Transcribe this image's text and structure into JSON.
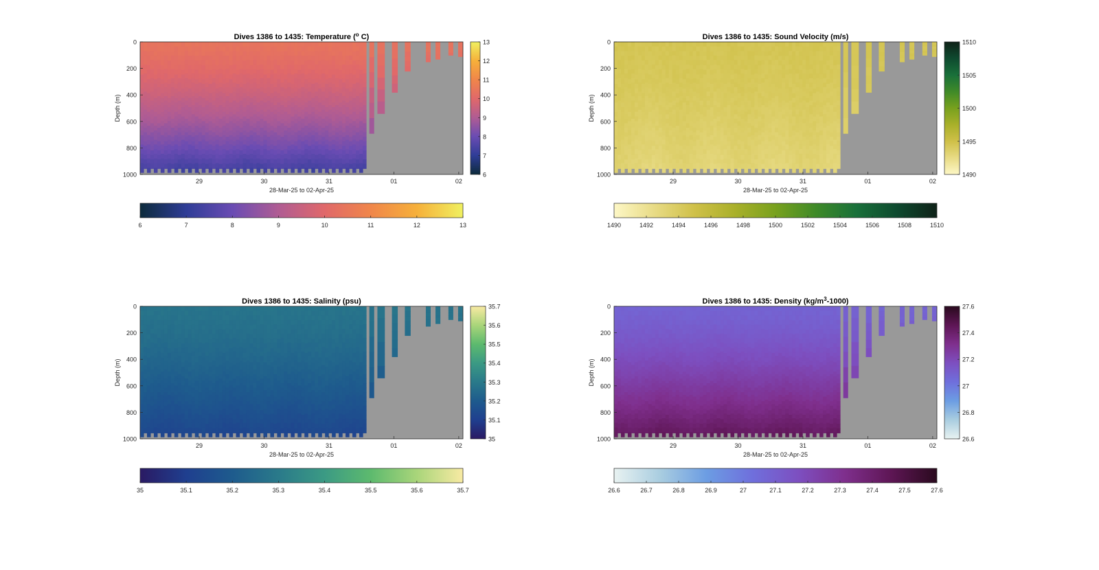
{
  "figure": {
    "background": "#ffffff",
    "land_color": "#999999",
    "x_axis_label": "28-Mar-25 to 02-Apr-25",
    "y_axis_label": "Depth (m)",
    "x_ticks": [
      "29",
      "30",
      "31",
      "01",
      "02"
    ],
    "y_ticks": [
      "0",
      "200",
      "400",
      "600",
      "800",
      "1000"
    ]
  },
  "chart_data": [
    {
      "type": "heatmap",
      "variable": "temperature",
      "title_pre": "Dives 1386 to 1435: Temperature (",
      "title_sup": "o",
      "title_post": " C)",
      "colormap": [
        "#0d2b3c",
        "#2f3d97",
        "#6a4cb3",
        "#b05c93",
        "#e0686a",
        "#f0864a",
        "#f6b03a",
        "#f0f060"
      ],
      "clim": [
        6,
        13
      ],
      "surface_value": 10.4,
      "deep_value": 7.2,
      "color_ticks_right": [
        "6",
        "7",
        "8",
        "9",
        "10",
        "11",
        "12",
        "13"
      ],
      "color_ticks_bottom": [
        "6",
        "7",
        "8",
        "9",
        "10",
        "11",
        "12",
        "13"
      ],
      "ylim": [
        0,
        1000
      ],
      "grid": false
    },
    {
      "type": "heatmap",
      "variable": "sound_velocity",
      "title_pre": "Dives 1386 to 1435: Sound Velocity (m/s)",
      "title_sup": "",
      "title_post": "",
      "colormap": [
        "#fdf7c6",
        "#e8db85",
        "#cfc048",
        "#a9b02a",
        "#78a11e",
        "#3f8a28",
        "#19703a",
        "#0e4a2f",
        "#0f2218"
      ],
      "clim": [
        1490,
        1510
      ],
      "surface_value": 1494.5,
      "deep_value": 1493.0,
      "color_ticks_right": [
        "1490",
        "1495",
        "1500",
        "1505",
        "1510"
      ],
      "color_ticks_bottom": [
        "1490",
        "1492",
        "1494",
        "1496",
        "1498",
        "1500",
        "1502",
        "1504",
        "1506",
        "1508",
        "1510"
      ],
      "ylim": [
        0,
        1000
      ],
      "grid": false
    },
    {
      "type": "heatmap",
      "variable": "salinity",
      "title_pre": "Dives 1386 to 1435: Salinity (psu)",
      "title_sup": "",
      "title_post": "",
      "colormap": [
        "#2a1a63",
        "#1f3f8f",
        "#1e5b8d",
        "#2a7a8a",
        "#3b9a84",
        "#5dba6e",
        "#a9d57a",
        "#f8eaa3"
      ],
      "clim": [
        35,
        35.7
      ],
      "surface_value": 35.28,
      "deep_value": 35.12,
      "color_ticks_right": [
        "35",
        "35.1",
        "35.2",
        "35.3",
        "35.4",
        "35.5",
        "35.6",
        "35.7"
      ],
      "color_ticks_bottom": [
        "35",
        "35.1",
        "35.2",
        "35.3",
        "35.4",
        "35.5",
        "35.6",
        "35.7"
      ],
      "ylim": [
        0,
        1000
      ],
      "grid": false
    },
    {
      "type": "heatmap",
      "variable": "density",
      "title_pre": "Dives 1386 to 1435: Density (kg/m",
      "title_sup": "3",
      "title_post": "-1000)",
      "colormap": [
        "#e8f2f1",
        "#a9cde0",
        "#6c9de3",
        "#6f6fdc",
        "#7d4fc0",
        "#7f2f8d",
        "#5e1655",
        "#2a0a1e"
      ],
      "clim": [
        26.6,
        27.6
      ],
      "surface_value": 27.08,
      "deep_value": 27.45,
      "color_ticks_right": [
        "26.6",
        "26.8",
        "27",
        "27.2",
        "27.4",
        "27.6"
      ],
      "color_ticks_bottom": [
        "26.6",
        "26.7",
        "26.8",
        "26.9",
        "27",
        "27.1",
        "27.2",
        "27.3",
        "27.4",
        "27.5",
        "27.6"
      ],
      "ylim": [
        0,
        1000
      ],
      "grid": false
    }
  ]
}
